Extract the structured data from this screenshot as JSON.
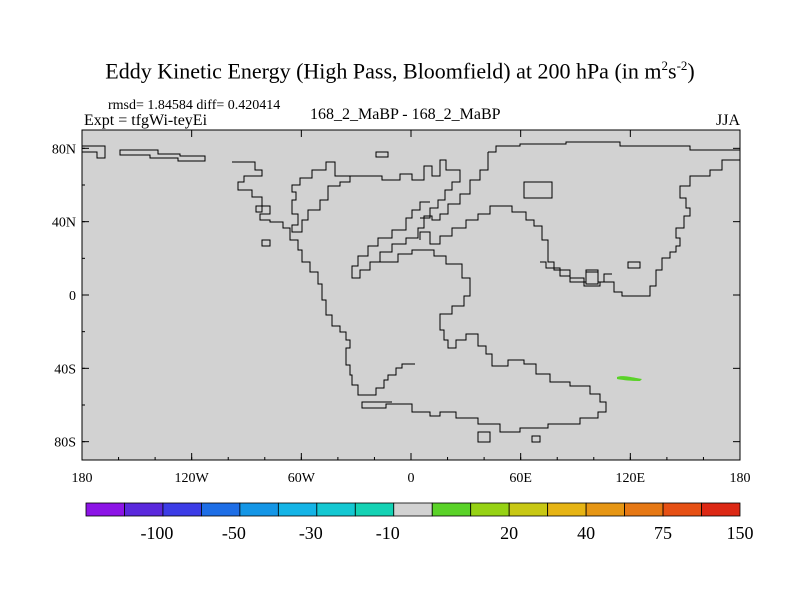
{
  "header": {
    "title_main": "Eddy Kinetic Energy (High Pass, Bloomfield) at 200 hPa (in m",
    "title_sup1": "2",
    "title_mid": "s",
    "title_sup2": "-2",
    "title_end": ")",
    "stats": "rmsd= 1.84584 diff= 0.420414",
    "expt": "Expt = tfgWi-teyEi",
    "center_label": "168_2_MaBP - 168_2_MaBP",
    "season": "JJA"
  },
  "chart_data": {
    "type": "heatmap",
    "title": "Eddy Kinetic Energy (High Pass, Bloomfield) at 200 hPa (in m2s-2)",
    "subtitle": "168_2_MaBP - 168_2_MaBP",
    "field_value_background": 0,
    "x_axis": {
      "range": [
        -180,
        180
      ],
      "ticks": [
        -180,
        -120,
        -60,
        0,
        60,
        120,
        180
      ],
      "tick_labels": [
        "180",
        "120W",
        "60W",
        "0",
        "60E",
        "120E",
        "180"
      ]
    },
    "y_axis": {
      "range": [
        -90,
        90
      ],
      "ticks": [
        80,
        40,
        0,
        -40,
        -80
      ],
      "tick_labels": [
        "80N",
        "40N",
        "0",
        "40S",
        "80S"
      ]
    },
    "anomaly_patch": {
      "description_value_bin": "10 to 20",
      "color": "#5ad228",
      "lon_range": [
        113,
        127
      ],
      "lat_center": -44
    },
    "colorbar": {
      "colors": [
        "#8c14e6",
        "#5a28dc",
        "#3c3ce6",
        "#1e6ee6",
        "#1496e6",
        "#14b4e6",
        "#14c8d2",
        "#14d2b4",
        "#d2d2d2",
        "#5ad228",
        "#96d214",
        "#c8c814",
        "#e6b414",
        "#e69614",
        "#e67814",
        "#e65014",
        "#dc2814"
      ],
      "labels": [
        "-100",
        "-50",
        "-30",
        "-10",
        "20",
        "40",
        "75",
        "150"
      ]
    },
    "colors": {
      "background_field": "#d2d2d2",
      "coastline": "#000000"
    }
  }
}
